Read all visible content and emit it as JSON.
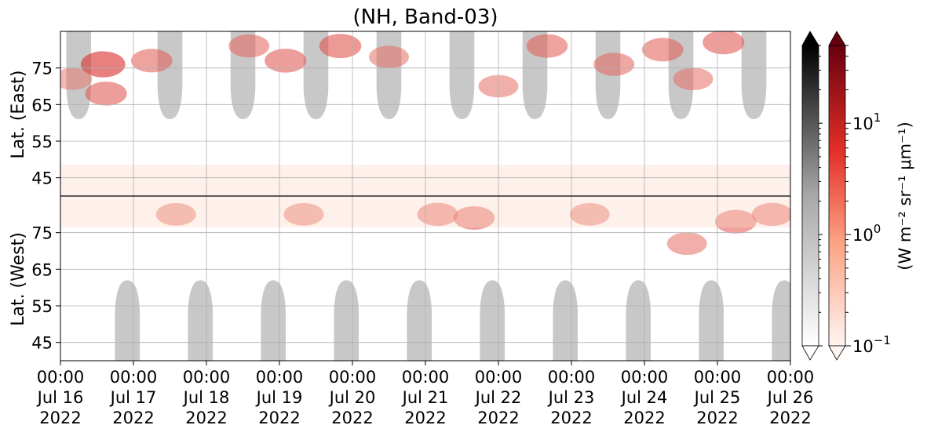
{
  "chart_data": {
    "type": "heatmap",
    "title": "(NH, Band-03)",
    "ylabel_top": "Lat. (East)",
    "ylabel_bottom": "Lat. (West)",
    "colorbar_label": "(W m⁻² sr⁻¹ μm⁻¹)",
    "x": {
      "ticks": [
        {
          "line1": "00:00",
          "line2": "Jul 16",
          "line3": "2022"
        },
        {
          "line1": "00:00",
          "line2": "Jul 17",
          "line3": "2022"
        },
        {
          "line1": "00:00",
          "line2": "Jul 18",
          "line3": "2022"
        },
        {
          "line1": "00:00",
          "line2": "Jul 19",
          "line3": "2022"
        },
        {
          "line1": "00:00",
          "line2": "Jul 20",
          "line3": "2022"
        },
        {
          "line1": "00:00",
          "line2": "Jul 21",
          "line3": "2022"
        },
        {
          "line1": "00:00",
          "line2": "Jul 22",
          "line3": "2022"
        },
        {
          "line1": "00:00",
          "line2": "Jul 23",
          "line3": "2022"
        },
        {
          "line1": "00:00",
          "line2": "Jul 24",
          "line3": "2022"
        },
        {
          "line1": "00:00",
          "line2": "Jul 25",
          "line3": "2022"
        },
        {
          "line1": "00:00",
          "line2": "Jul 26",
          "line3": "2022"
        }
      ],
      "range": [
        "2022-07-16T00:00",
        "2022-07-26T00:00"
      ]
    },
    "y_east": {
      "ticks": [
        "45",
        "55",
        "65",
        "75"
      ],
      "range": [
        40,
        85
      ]
    },
    "y_west": {
      "ticks": [
        "75",
        "65",
        "55",
        "45"
      ],
      "range": [
        85,
        40
      ]
    },
    "grid": true,
    "colorbars": [
      {
        "name": "grey",
        "cmap": "Greys",
        "scale": "log",
        "range": [
          0.1,
          50
        ],
        "ticks": [],
        "extend": "both"
      },
      {
        "name": "red",
        "cmap": "Reds",
        "scale": "log",
        "range": [
          0.1,
          50
        ],
        "ticks": [
          {
            "base": "10",
            "exp": "−1"
          },
          {
            "base": "10",
            "exp": "0"
          },
          {
            "base": "10",
            "exp": "1"
          }
        ],
        "extend": "both"
      }
    ],
    "daylight_regions_east": [
      {
        "center": "2022-07-16T06:00",
        "min_lat": 61
      },
      {
        "center": "2022-07-17T12:00",
        "min_lat": 61
      },
      {
        "center": "2022-07-18T12:00",
        "min_lat": 61
      },
      {
        "center": "2022-07-19T12:00",
        "min_lat": 61
      },
      {
        "center": "2022-07-20T12:00",
        "min_lat": 61
      },
      {
        "center": "2022-07-21T12:00",
        "min_lat": 61
      },
      {
        "center": "2022-07-22T12:00",
        "min_lat": 61
      },
      {
        "center": "2022-07-23T12:00",
        "min_lat": 61
      },
      {
        "center": "2022-07-24T12:00",
        "min_lat": 61
      },
      {
        "center": "2022-07-25T12:00",
        "min_lat": 61
      }
    ],
    "daylight_regions_west": [
      {
        "center": "2022-07-16T22:00",
        "min_lat": 62
      },
      {
        "center": "2022-07-17T22:00",
        "min_lat": 62
      },
      {
        "center": "2022-07-18T22:00",
        "min_lat": 62
      },
      {
        "center": "2022-07-19T22:00",
        "min_lat": 62
      },
      {
        "center": "2022-07-20T22:00",
        "min_lat": 62
      },
      {
        "center": "2022-07-21T22:00",
        "min_lat": 62
      },
      {
        "center": "2022-07-22T22:00",
        "min_lat": 62
      },
      {
        "center": "2022-07-23T22:00",
        "min_lat": 62
      },
      {
        "center": "2022-07-24T22:00",
        "min_lat": 62
      },
      {
        "center": "2022-07-25T22:00",
        "min_lat": 62
      }
    ],
    "emission_patches": [
      {
        "time": "2022-07-16T14:00",
        "lat": 76,
        "side": "east",
        "value": 18
      },
      {
        "time": "2022-07-16T15:00",
        "lat": 68,
        "side": "east",
        "value": 6
      },
      {
        "time": "2022-07-16T04:00",
        "lat": 72,
        "side": "east",
        "value": 2
      },
      {
        "time": "2022-07-17T06:00",
        "lat": 77,
        "side": "east",
        "value": 5
      },
      {
        "time": "2022-07-17T14:00",
        "lat": 80,
        "side": "west",
        "value": 3
      },
      {
        "time": "2022-07-18T14:00",
        "lat": 81,
        "side": "east",
        "value": 4
      },
      {
        "time": "2022-07-19T02:00",
        "lat": 77,
        "side": "east",
        "value": 6
      },
      {
        "time": "2022-07-19T08:00",
        "lat": 80,
        "side": "west",
        "value": 3
      },
      {
        "time": "2022-07-19T20:00",
        "lat": 81,
        "side": "east",
        "value": 7
      },
      {
        "time": "2022-07-20T12:00",
        "lat": 78,
        "side": "east",
        "value": 3
      },
      {
        "time": "2022-07-21T04:00",
        "lat": 80,
        "side": "west",
        "value": 4
      },
      {
        "time": "2022-07-21T16:00",
        "lat": 79,
        "side": "west",
        "value": 5
      },
      {
        "time": "2022-07-22T00:00",
        "lat": 70,
        "side": "east",
        "value": 3
      },
      {
        "time": "2022-07-22T16:00",
        "lat": 81,
        "side": "east",
        "value": 5
      },
      {
        "time": "2022-07-23T06:00",
        "lat": 80,
        "side": "west",
        "value": 3
      },
      {
        "time": "2022-07-23T14:00",
        "lat": 76,
        "side": "east",
        "value": 4
      },
      {
        "time": "2022-07-24T06:00",
        "lat": 80,
        "side": "east",
        "value": 5
      },
      {
        "time": "2022-07-24T14:00",
        "lat": 72,
        "side": "west",
        "value": 3
      },
      {
        "time": "2022-07-24T16:00",
        "lat": 72,
        "side": "east",
        "value": 3
      },
      {
        "time": "2022-07-25T02:00",
        "lat": 82,
        "side": "east",
        "value": 6
      },
      {
        "time": "2022-07-25T06:00",
        "lat": 78,
        "side": "west",
        "value": 5
      },
      {
        "time": "2022-07-25T18:00",
        "lat": 80,
        "side": "west",
        "value": 4
      }
    ]
  }
}
